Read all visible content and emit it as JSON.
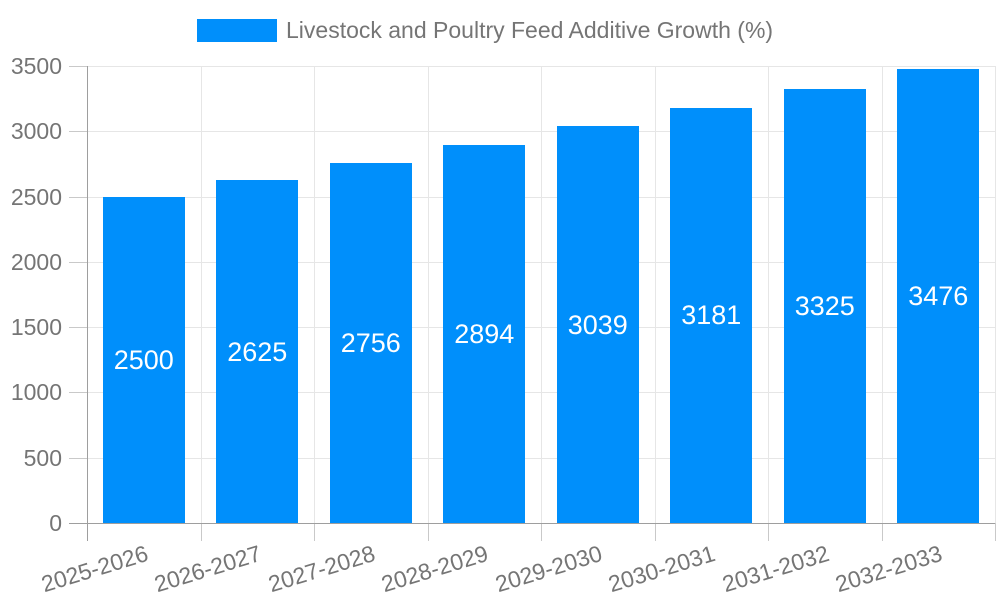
{
  "chart_data": {
    "type": "bar",
    "title": "Livestock and Poultry Feed Additive Growth (%)",
    "series_name": "Livestock and Poultry Feed Additive Growth (%)",
    "categories": [
      "2025-2026",
      "2026-2027",
      "2027-2028",
      "2028-2029",
      "2029-2030",
      "2030-2031",
      "2031-2032",
      "2032-2033"
    ],
    "values": [
      2500,
      2625,
      2756,
      2894,
      3039,
      3181,
      3325,
      3476
    ],
    "xlabel": "",
    "ylabel": "",
    "ylim": [
      0,
      3500
    ],
    "yticks": [
      0,
      500,
      1000,
      1500,
      2000,
      2500,
      3000,
      3500
    ],
    "grid": "both",
    "legend_position": "top",
    "bar_color": "#008FFB",
    "data_label_color": "#FFFFFF",
    "axis_text_color": "#757575"
  }
}
